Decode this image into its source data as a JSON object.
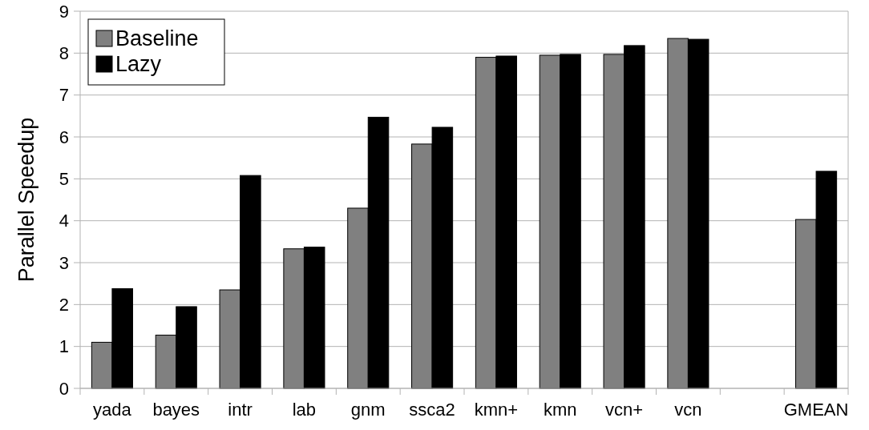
{
  "chart_data": {
    "type": "bar",
    "ylabel": "Parallel Speedup",
    "categories": [
      "yada",
      "bayes",
      "intr",
      "lab",
      "gnm",
      "ssca2",
      "kmn+",
      "kmn",
      "vcn+",
      "vcn",
      null,
      "GMEAN"
    ],
    "series": [
      {
        "name": "Baseline",
        "color": "#808080",
        "values": [
          1.1,
          1.27,
          2.35,
          3.33,
          4.3,
          5.83,
          7.9,
          7.95,
          7.97,
          8.35,
          null,
          4.03
        ]
      },
      {
        "name": "Lazy",
        "color": "#000000",
        "values": [
          2.38,
          1.95,
          5.08,
          3.37,
          6.47,
          6.23,
          7.93,
          7.97,
          8.18,
          8.33,
          null,
          5.18
        ]
      }
    ],
    "ylim": [
      0,
      9
    ],
    "yticks": [
      0,
      1,
      2,
      3,
      4,
      5,
      6,
      7,
      8,
      9
    ],
    "grid": "y",
    "legend": "top left"
  }
}
